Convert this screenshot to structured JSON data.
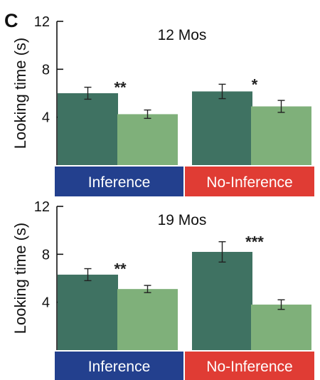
{
  "panel_letter": "C",
  "colors": {
    "bar_dark": "#3f7262",
    "bar_light": "#7fb07a",
    "error_bar": "#222222",
    "axis": "#111111"
  },
  "chart_data": [
    {
      "type": "bar",
      "title": "12 Mos",
      "ylabel": "Looking time (s)",
      "xlabel": "",
      "ylim": [
        0,
        12
      ],
      "yticks": [
        4,
        8,
        12
      ],
      "grid": false,
      "groups": [
        {
          "label": "Inference",
          "color": "#23408e",
          "significance": "**",
          "bars": [
            {
              "value": 6.0,
              "error": 0.5,
              "color": "#3f7262"
            },
            {
              "value": 4.25,
              "error": 0.35,
              "color": "#7fb07a"
            }
          ]
        },
        {
          "label": "No-Inference",
          "color": "#e03c34",
          "significance": "*",
          "bars": [
            {
              "value": 6.15,
              "error": 0.6,
              "color": "#3f7262"
            },
            {
              "value": 4.9,
              "error": 0.5,
              "color": "#7fb07a"
            }
          ]
        }
      ]
    },
    {
      "type": "bar",
      "title": "19 Mos",
      "ylabel": "Looking time (s)",
      "xlabel": "",
      "ylim": [
        0,
        12
      ],
      "yticks": [
        4,
        8,
        12
      ],
      "grid": false,
      "groups": [
        {
          "label": "Inference",
          "color": "#23408e",
          "significance": "**",
          "bars": [
            {
              "value": 6.3,
              "error": 0.5,
              "color": "#3f7262"
            },
            {
              "value": 5.1,
              "error": 0.3,
              "color": "#7fb07a"
            }
          ]
        },
        {
          "label": "No-Inference",
          "color": "#e03c34",
          "significance": "***",
          "bars": [
            {
              "value": 8.2,
              "error": 0.85,
              "color": "#3f7262"
            },
            {
              "value": 3.8,
              "error": 0.4,
              "color": "#7fb07a"
            }
          ]
        }
      ]
    }
  ]
}
